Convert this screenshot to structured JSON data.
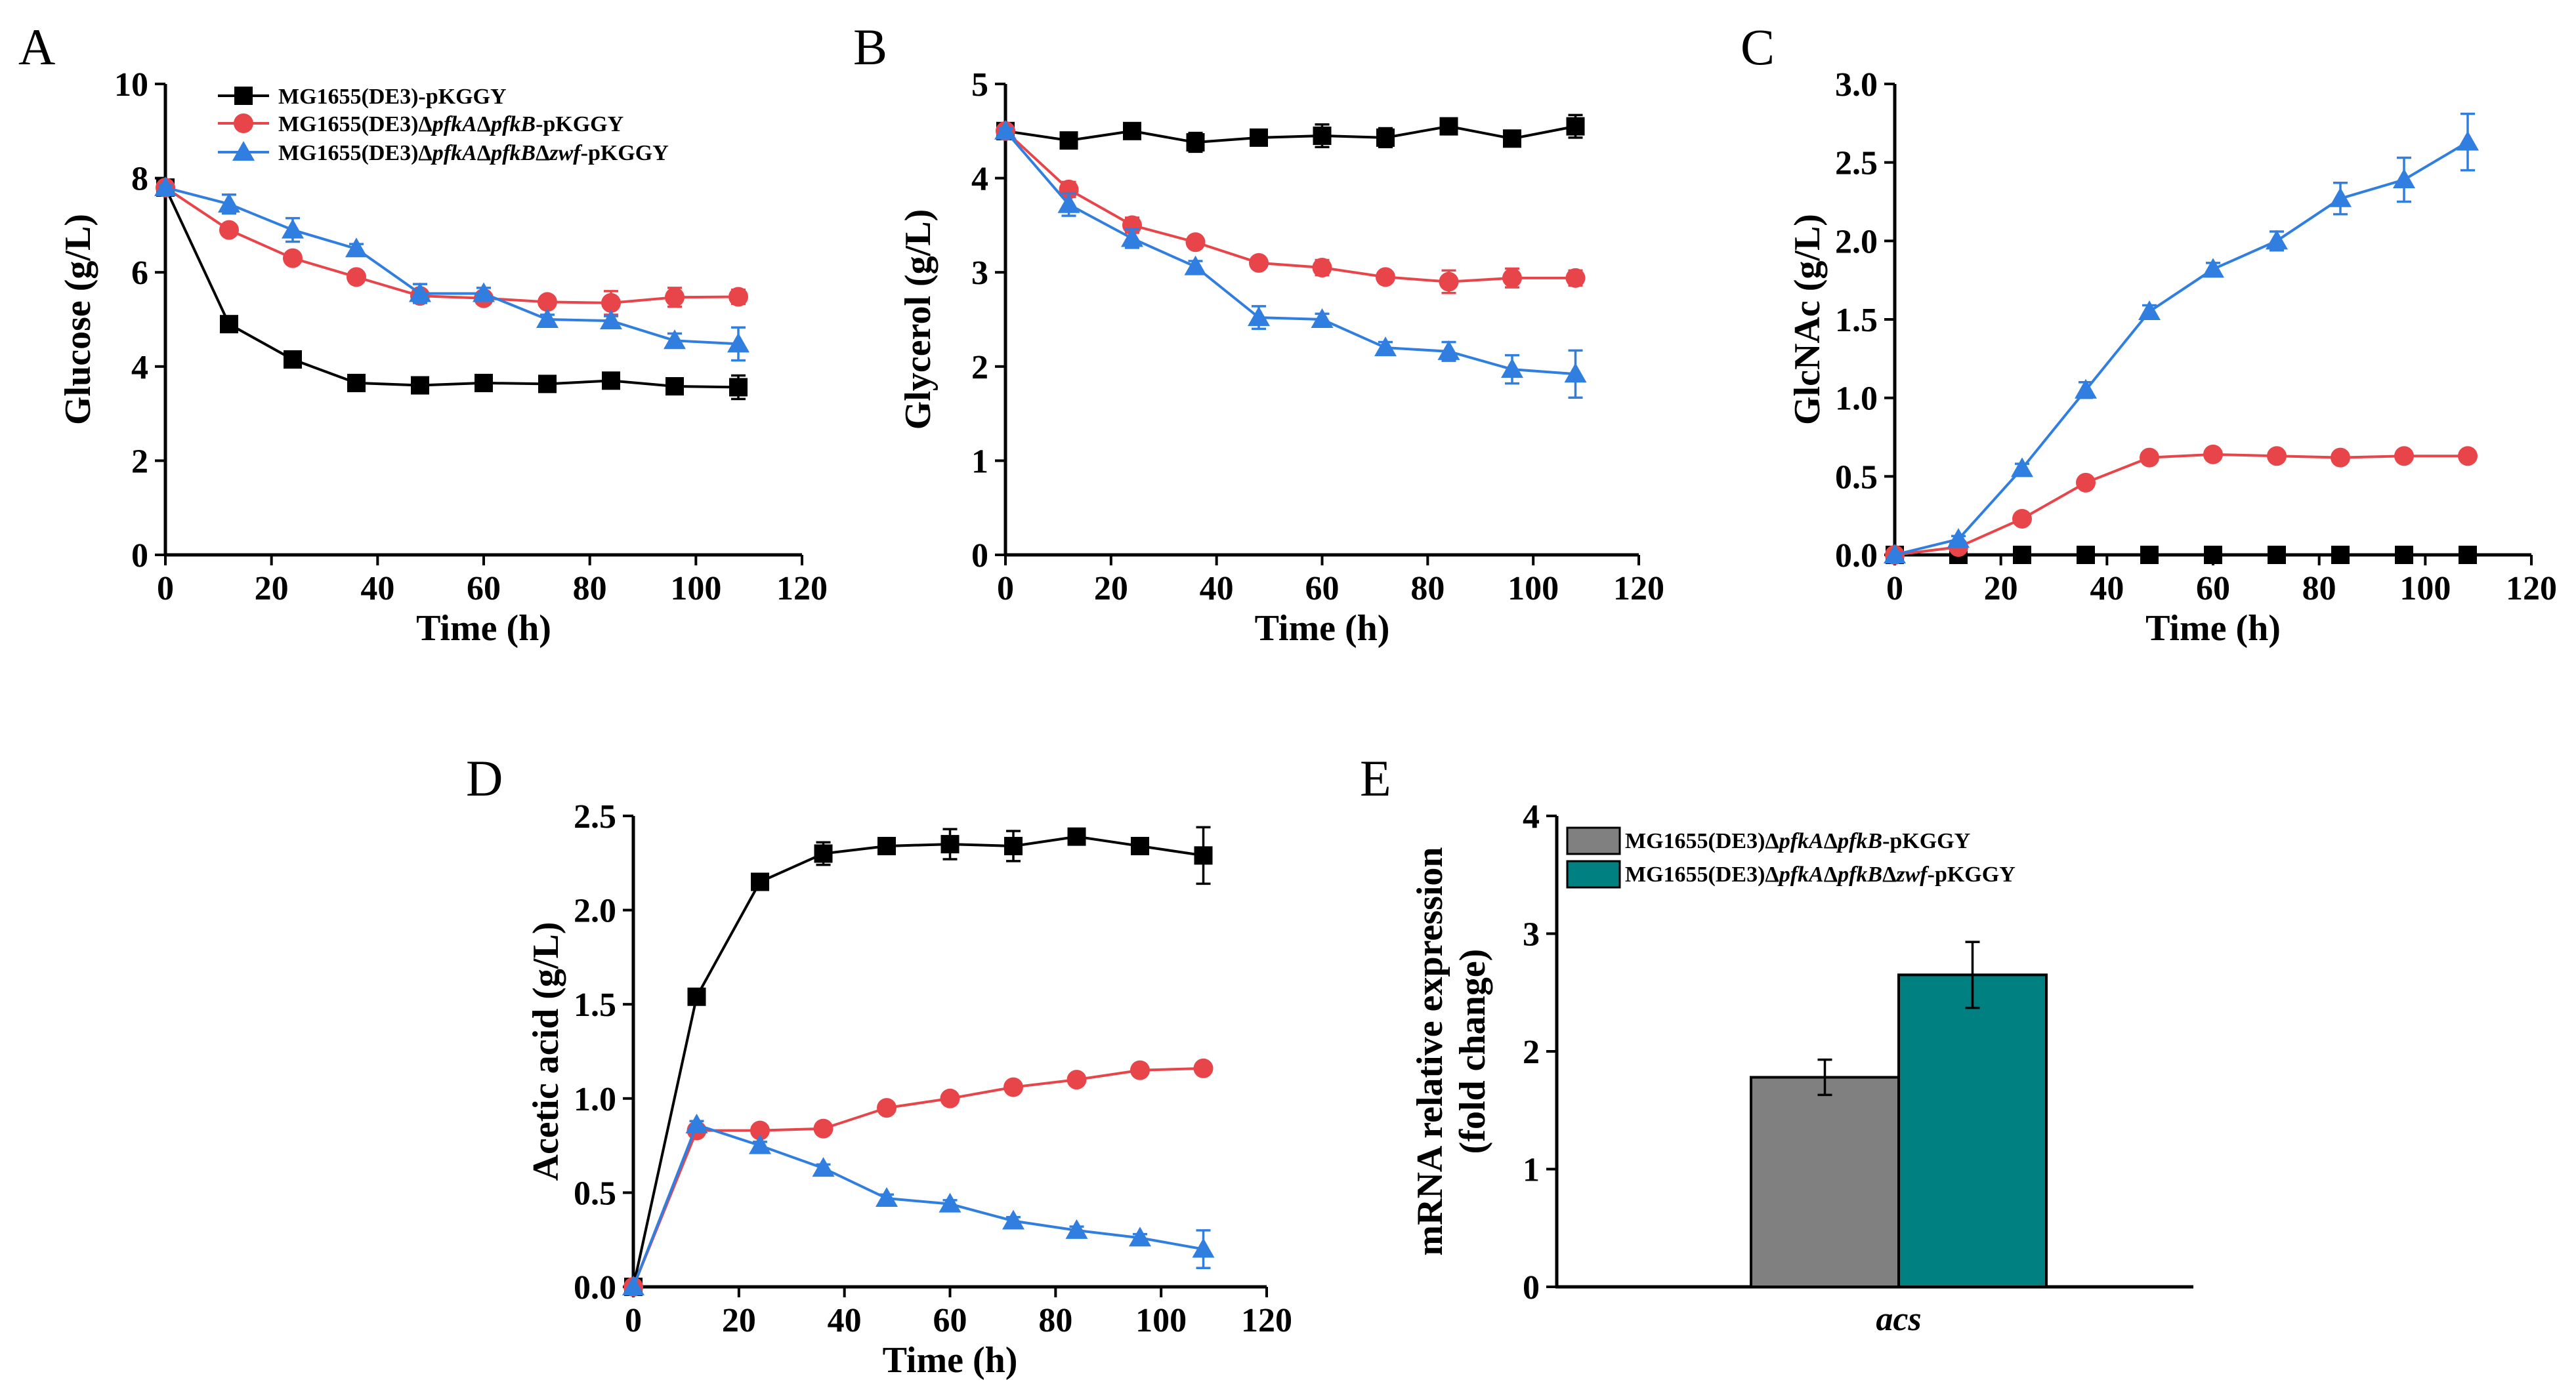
{
  "colors": {
    "black_series": "#000000",
    "red_series": "#e8454a",
    "blue_series": "#2f7ee0",
    "bar_grey": "#808080",
    "bar_teal": "#008080"
  },
  "legend": {
    "wt": "MG1655(DE3)-pKGGY",
    "ab": {
      "pre": "MG1655(DE3)Δ",
      "g1": "pfkA",
      "mid1": "Δ",
      "g2": "pfkB",
      "post": "-pKGGY"
    },
    "abz": {
      "pre": "MG1655(DE3)Δ",
      "g1": "pfkA",
      "mid1": "Δ",
      "g2": "pfkB",
      "mid2": "Δ",
      "g3": "zwf",
      "post": "-pKGGY"
    }
  },
  "chart_data": [
    {
      "id": "A",
      "panel_label": "A",
      "type": "line",
      "title": "",
      "xlabel": "Time (h)",
      "ylabel": "Glucose (g/L)",
      "xlim": [
        0,
        120
      ],
      "ylim": [
        0,
        10
      ],
      "xticks": [
        0,
        20,
        40,
        60,
        80,
        100,
        120
      ],
      "yticks": [
        0,
        2,
        4,
        6,
        8,
        10
      ],
      "x": [
        0,
        12,
        24,
        36,
        48,
        60,
        72,
        84,
        96,
        108
      ],
      "legend_position": "top-left",
      "series": [
        {
          "key": "wt",
          "name": "MG1655(DE3)-pKGGY",
          "marker": "square",
          "color": "#000000",
          "values": [
            7.8,
            4.9,
            4.15,
            3.65,
            3.6,
            3.65,
            3.63,
            3.7,
            3.58,
            3.56
          ],
          "errors": [
            0.05,
            0.08,
            0.08,
            0.06,
            0.06,
            0.06,
            0.06,
            0.06,
            0.08,
            0.25
          ]
        },
        {
          "key": "ab",
          "name": "MG1655(DE3)ΔpfkAΔpfkB-pKGGY",
          "marker": "circle",
          "color": "#e8454a",
          "values": [
            7.8,
            6.9,
            6.3,
            5.9,
            5.5,
            5.45,
            5.37,
            5.35,
            5.47,
            5.48
          ],
          "errors": [
            0.05,
            0.1,
            0.08,
            0.08,
            0.1,
            0.1,
            0.1,
            0.25,
            0.2,
            0.15
          ]
        },
        {
          "key": "abz",
          "name": "MG1655(DE3)ΔpfkAΔpfkBΔzwf-pKGGY",
          "marker": "triangle",
          "color": "#2f7ee0",
          "values": [
            7.8,
            7.45,
            6.9,
            6.5,
            5.55,
            5.55,
            5.0,
            4.97,
            4.55,
            4.48
          ],
          "errors": [
            0.05,
            0.2,
            0.25,
            0.1,
            0.2,
            0.12,
            0.1,
            0.1,
            0.15,
            0.35
          ]
        }
      ]
    },
    {
      "id": "B",
      "panel_label": "B",
      "type": "line",
      "title": "",
      "xlabel": "Time (h)",
      "ylabel": "Glycerol (g/L)",
      "xlim": [
        0,
        120
      ],
      "ylim": [
        0,
        5
      ],
      "xticks": [
        0,
        20,
        40,
        60,
        80,
        100,
        120
      ],
      "yticks": [
        0,
        1,
        2,
        3,
        4,
        5
      ],
      "x": [
        0,
        12,
        24,
        36,
        48,
        60,
        72,
        84,
        96,
        108
      ],
      "series": [
        {
          "key": "wt",
          "name": "MG1655(DE3)-pKGGY",
          "marker": "square",
          "color": "#000000",
          "values": [
            4.5,
            4.4,
            4.5,
            4.38,
            4.43,
            4.45,
            4.43,
            4.55,
            4.42,
            4.55
          ],
          "errors": [
            0.03,
            0.05,
            0.05,
            0.1,
            0.05,
            0.12,
            0.1,
            0.05,
            0.05,
            0.12
          ]
        },
        {
          "key": "ab",
          "name": "MG1655(DE3)ΔpfkAΔpfkB-pKGGY",
          "marker": "circle",
          "color": "#e8454a",
          "values": [
            4.5,
            3.88,
            3.5,
            3.32,
            3.1,
            3.05,
            2.95,
            2.9,
            2.94,
            2.94
          ],
          "errors": [
            0.03,
            0.08,
            0.08,
            0.06,
            0.06,
            0.08,
            0.06,
            0.12,
            0.1,
            0.08
          ]
        },
        {
          "key": "abz",
          "name": "MG1655(DE3)ΔpfkAΔpfkBΔzwf-pKGGY",
          "marker": "triangle",
          "color": "#2f7ee0",
          "values": [
            4.5,
            3.72,
            3.36,
            3.06,
            2.52,
            2.5,
            2.2,
            2.16,
            1.97,
            1.92
          ],
          "errors": [
            0.03,
            0.12,
            0.1,
            0.06,
            0.12,
            0.06,
            0.06,
            0.1,
            0.15,
            0.25
          ]
        }
      ]
    },
    {
      "id": "C",
      "panel_label": "C",
      "type": "line",
      "title": "",
      "xlabel": "Time (h)",
      "ylabel": "GlcNAc (g/L)",
      "xlim": [
        0,
        120
      ],
      "ylim": [
        0,
        3.0
      ],
      "xticks": [
        0,
        20,
        40,
        60,
        80,
        100,
        120
      ],
      "yticks": [
        0.0,
        0.5,
        1.0,
        1.5,
        2.0,
        2.5,
        3.0
      ],
      "ytick_labels": [
        "0.0",
        "0.5",
        "1.0",
        "1.5",
        "2.0",
        "2.5",
        "3.0"
      ],
      "x": [
        0,
        12,
        24,
        36,
        48,
        60,
        72,
        84,
        96,
        108
      ],
      "series": [
        {
          "key": "wt",
          "name": "MG1655(DE3)-pKGGY",
          "marker": "square",
          "color": "#000000",
          "values": [
            0,
            0,
            0,
            0,
            0,
            0,
            0,
            0,
            0,
            0
          ],
          "errors": [
            0,
            0,
            0,
            0,
            0,
            0,
            0,
            0,
            0,
            0
          ]
        },
        {
          "key": "ab",
          "name": "MG1655(DE3)ΔpfkAΔpfkB-pKGGY",
          "marker": "circle",
          "color": "#e8454a",
          "values": [
            0,
            0.05,
            0.23,
            0.46,
            0.62,
            0.64,
            0.63,
            0.62,
            0.63,
            0.63
          ],
          "errors": [
            0,
            0.01,
            0.02,
            0.02,
            0.02,
            0.02,
            0.02,
            0.02,
            0.02,
            0.02
          ]
        },
        {
          "key": "abz",
          "name": "MG1655(DE3)ΔpfkAΔpfkBΔzwf-pKGGY",
          "marker": "triangle",
          "color": "#2f7ee0",
          "values": [
            0,
            0.1,
            0.55,
            1.05,
            1.55,
            1.82,
            2.0,
            2.27,
            2.39,
            2.63
          ],
          "errors": [
            0,
            0.02,
            0.03,
            0.05,
            0.04,
            0.04,
            0.06,
            0.1,
            0.14,
            0.18
          ]
        }
      ]
    },
    {
      "id": "D",
      "panel_label": "D",
      "type": "line",
      "title": "",
      "xlabel": "Time (h)",
      "ylabel": "Acetic acid (g/L)",
      "xlim": [
        0,
        120
      ],
      "ylim": [
        0,
        2.5
      ],
      "xticks": [
        0,
        20,
        40,
        60,
        80,
        100,
        120
      ],
      "yticks": [
        0.0,
        0.5,
        1.0,
        1.5,
        2.0,
        2.5
      ],
      "ytick_labels": [
        "0.0",
        "0.5",
        "1.0",
        "1.5",
        "2.0",
        "2.5"
      ],
      "x": [
        0,
        12,
        24,
        36,
        48,
        60,
        72,
        84,
        96,
        108
      ],
      "series": [
        {
          "key": "wt",
          "name": "MG1655(DE3)-pKGGY",
          "marker": "square",
          "color": "#000000",
          "values": [
            0,
            1.54,
            2.15,
            2.3,
            2.34,
            2.35,
            2.34,
            2.39,
            2.34,
            2.29
          ],
          "errors": [
            0,
            0.02,
            0.03,
            0.06,
            0.03,
            0.08,
            0.08,
            0.03,
            0.03,
            0.15
          ]
        },
        {
          "key": "ab",
          "name": "MG1655(DE3)ΔpfkAΔpfkB-pKGGY",
          "marker": "circle",
          "color": "#e8454a",
          "values": [
            0,
            0.83,
            0.83,
            0.84,
            0.95,
            1.0,
            1.06,
            1.1,
            1.15,
            1.16
          ],
          "errors": [
            0,
            0.02,
            0.02,
            0.02,
            0.02,
            0.02,
            0.02,
            0.02,
            0.02,
            0.02
          ]
        },
        {
          "key": "abz",
          "name": "MG1655(DE3)ΔpfkAΔpfkBΔzwf-pKGGY",
          "marker": "triangle",
          "color": "#2f7ee0",
          "values": [
            0,
            0.86,
            0.75,
            0.63,
            0.47,
            0.44,
            0.35,
            0.3,
            0.26,
            0.2
          ],
          "errors": [
            0,
            0.02,
            0.02,
            0.02,
            0.02,
            0.02,
            0.02,
            0.02,
            0.02,
            0.1
          ]
        }
      ]
    },
    {
      "id": "E",
      "panel_label": "E",
      "type": "bar",
      "title": "",
      "xlabel": "",
      "ylabel_line1": "mRNA relative expression",
      "ylabel_line2": "(fold change)",
      "ylim": [
        0,
        4
      ],
      "yticks": [
        0,
        1,
        2,
        3,
        4
      ],
      "categories": [
        "acs"
      ],
      "legend_position": "top-left",
      "series": [
        {
          "key": "ab",
          "name": "MG1655(DE3)ΔpfkAΔpfkB-pKGGY",
          "color": "#808080",
          "values": [
            1.78
          ],
          "errors": [
            0.15
          ]
        },
        {
          "key": "abz",
          "name": "MG1655(DE3)ΔpfkAΔpfkBΔzwf-pKGGY",
          "color": "#008080",
          "values": [
            2.65
          ],
          "errors": [
            0.28
          ]
        }
      ]
    }
  ]
}
